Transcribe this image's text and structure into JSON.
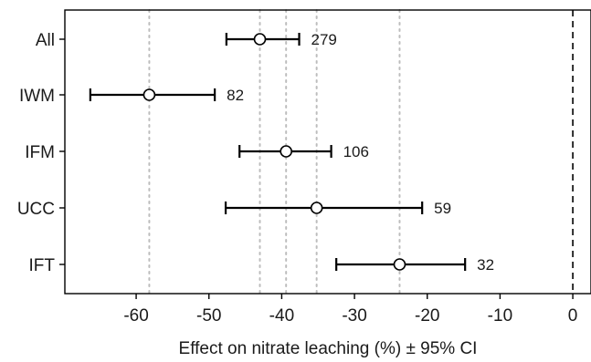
{
  "chart_data": {
    "type": "scatter",
    "title": "",
    "xlabel": "Effect on nitrate leaching (%) ± 95% CI",
    "ylabel": "",
    "xlim": [
      -69.8,
      2.5
    ],
    "xticks": [
      -60,
      -50,
      -40,
      -30,
      -20,
      -10,
      0
    ],
    "tick_labels": [
      "-60",
      "-50",
      "-40",
      "-30",
      "-20",
      "-10",
      "0"
    ],
    "reference_line": 0,
    "grid": false,
    "legend": "none",
    "categories": [
      "All",
      "IWM",
      "IFM",
      "UCC",
      "IFT"
    ],
    "series": [
      {
        "estimates": [
          -43.0,
          -58.2,
          -39.4,
          -35.2,
          -23.8
        ],
        "ci_lower": [
          -47.6,
          -66.3,
          -45.8,
          -47.7,
          -32.5
        ],
        "ci_upper": [
          -37.6,
          -49.2,
          -33.2,
          -20.7,
          -14.8
        ],
        "n_labels": [
          "279",
          "82",
          "106",
          "59",
          "32"
        ]
      }
    ],
    "colors": {
      "marker_fill": "#ffffff",
      "marker_stroke": "#000000",
      "errorbar": "#000000",
      "dotted_line": "#bdbdbd",
      "zero_line": "#000000",
      "text": "#1a1a1a"
    }
  }
}
